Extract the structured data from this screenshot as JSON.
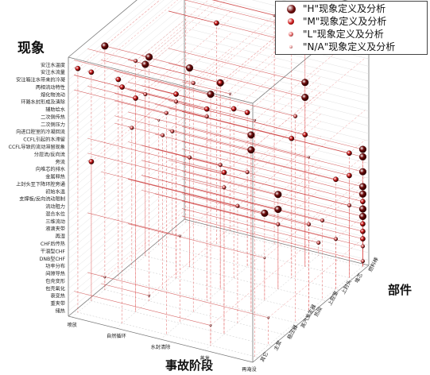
{
  "chart_data": {
    "type": "scatter",
    "projection": "3d",
    "z_axis_title": "现象",
    "x_axis_title": "事故阶段",
    "y_axis_title": "部件",
    "phenomena": [
      "安注水温度",
      "安注水流量",
      "安注箱注水带来的冷凝",
      "两相流动特性",
      "熔化物流动",
      "环路水封形成及清除",
      "辅助给水",
      "二次侧传热",
      "二次侧压力",
      "向进口腔室的冷凝回流",
      "CCFL引起的水滞留",
      "CCFL导致的流动滞留现象",
      "分层流/反向流",
      "旁流",
      "向堆芯的排水",
      "金属释热",
      "上封头至下降环腔旁通",
      "初始水温",
      "支撑板/反向流动限制",
      "流动阻力",
      "混合水位",
      "三维流动",
      "液滴夹带",
      "再湿",
      "CHF后传热",
      "干涸型CHF",
      "DNB型CHF",
      "功率分布",
      "间隙导热",
      "包壳变形",
      "包壳氧化",
      "衰变热",
      "重夹带",
      "储热"
    ],
    "stages": [
      "喷放",
      "自然循环",
      "水封清除",
      "蒸发",
      "再淹没"
    ],
    "components": [
      "其它",
      "主泵",
      "稳压器",
      "蒸汽发生器",
      "热段",
      "上腔室",
      "上封头",
      "堆芯",
      "燃料棒"
    ],
    "legend": [
      "\"H\"现象定义及分析",
      "\"M\"现象定义及分析",
      "\"L\"现象定义及分析",
      "\"N/A\"现象定义及分析"
    ],
    "series": [
      {
        "name": "\"H\"现象定义及分析",
        "color": "#6e0b0b",
        "points": [
          {
            "stage": "喷放",
            "component": "稳压器",
            "phenomenon": "安注水流量"
          },
          {
            "stage": "蒸发",
            "component": "其它",
            "phenomenon": "安注水温度"
          },
          {
            "stage": "水封清除",
            "component": "热段",
            "phenomenon": "辅助给水"
          },
          {
            "stage": "喷放",
            "component": "上腔室",
            "phenomenon": "二次侧压力"
          },
          {
            "stage": "自然循环",
            "component": "稳压器",
            "phenomenon": "安注水流量"
          },
          {
            "stage": "自然循环",
            "component": "上腔室",
            "phenomenon": "二次侧传热"
          },
          {
            "stage": "蒸发",
            "component": "蒸汽发生器",
            "phenomenon": "CCFL引起的水滞留"
          },
          {
            "stage": "蒸发",
            "component": "蒸汽发生器",
            "phenomenon": "分层流/反向流"
          },
          {
            "stage": "再淹没",
            "component": "燃料棒",
            "phenomenon": "三维流动"
          },
          {
            "stage": "再淹没",
            "component": "燃料棒",
            "phenomenon": "再湿"
          },
          {
            "stage": "再淹没",
            "component": "燃料棒",
            "phenomenon": "流动阻力"
          },
          {
            "stage": "再淹没",
            "component": "燃料棒",
            "phenomenon": "CHF后传热"
          },
          {
            "stage": "再淹没",
            "component": "燃料棒",
            "phenomenon": "支撑板/反向流动限制"
          },
          {
            "stage": "蒸发",
            "component": "上腔室",
            "phenomenon": "三维流动"
          },
          {
            "stage": "蒸发",
            "component": "上腔室",
            "phenomenon": "再湿"
          },
          {
            "stage": "蒸发",
            "component": "堆芯",
            "phenomenon": "熔化物流动"
          },
          {
            "stage": "蒸发",
            "component": "堆芯",
            "phenomenon": "CCFL导致的流动滞留现象"
          },
          {
            "stage": "再淹没",
            "component": "燃料棒",
            "phenomenon": "功率分布"
          },
          {
            "stage": "再淹没",
            "component": "燃料棒",
            "phenomenon": "DNB型CHF"
          },
          {
            "stage": "蒸发",
            "component": "热段",
            "phenomenon": "液滴夹带"
          },
          {
            "stage": "蒸发",
            "component": "堆芯",
            "phenomenon": "安注水流量"
          },
          {
            "stage": "蒸发",
            "component": "堆芯",
            "phenomenon": "向进口腔室的冷凝回流"
          }
        ]
      },
      {
        "name": "\"M\"现象定义及分析",
        "color": "#d11a1a",
        "points": [
          {
            "stage": "喷放",
            "component": "其它",
            "phenomenon": "安注水流量"
          },
          {
            "stage": "自然循环",
            "component": "其它",
            "phenomenon": "安注箱注水带来的冷凝"
          },
          {
            "stage": "喷放",
            "component": "主泵",
            "phenomenon": "两相流动特性"
          },
          {
            "stage": "自然循环",
            "component": "主泵",
            "phenomenon": "环路水封形成及清除"
          },
          {
            "stage": "喷放",
            "component": "蒸汽发生器",
            "phenomenon": "二次侧传热"
          },
          {
            "stage": "水封清除",
            "component": "上腔室",
            "phenomenon": "CCFL导致的流动滞留现象"
          },
          {
            "stage": "水封清除",
            "component": "上封头",
            "phenomenon": "旁流"
          },
          {
            "stage": "蒸发",
            "component": "上封头",
            "phenomenon": "金属释热"
          },
          {
            "stage": "蒸发",
            "component": "堆芯",
            "phenomenon": "上封头至下降环腔旁通"
          },
          {
            "stage": "再淹没",
            "component": "堆芯",
            "phenomenon": "初始水温"
          },
          {
            "stage": "再淹没",
            "component": "堆芯",
            "phenomenon": "混合水位"
          },
          {
            "stage": "再淹没",
            "component": "上封头",
            "phenomenon": "流动阻力"
          },
          {
            "stage": "再淹没",
            "component": "燃料棒",
            "phenomenon": "干涸型CHF"
          },
          {
            "stage": "再淹没",
            "component": "燃料棒",
            "phenomenon": "间隙导热"
          },
          {
            "stage": "再淹没",
            "component": "燃料棒",
            "phenomenon": "包壳变形"
          },
          {
            "stage": "再淹没",
            "component": "燃料棒",
            "phenomenon": "包壳氧化"
          },
          {
            "stage": "蒸发",
            "component": "主泵",
            "phenomenon": "分层流/反向流"
          },
          {
            "stage": "自然循环",
            "component": "热段",
            "phenomenon": "向进口腔室的冷凝回流"
          },
          {
            "stage": "水封清除",
            "component": "蒸汽发生器",
            "phenomenon": "二次侧压力"
          },
          {
            "stage": "蒸发",
            "component": "上封头",
            "phenomenon": "安注水温度"
          },
          {
            "stage": "喷放",
            "component": "主泵",
            "phenomenon": "金属释热"
          },
          {
            "stage": "水封清除",
            "component": "热段",
            "phenomenon": "辅助给水"
          },
          {
            "stage": "自然循环",
            "component": "堆芯",
            "phenomenon": "熔化物流动"
          }
        ]
      },
      {
        "name": "\"L\"现象定义及分析",
        "color": "#e86a6a",
        "points": [
          {
            "stage": "自然循环",
            "component": "主泵",
            "phenomenon": "安注水温度"
          },
          {
            "stage": "水封清除",
            "component": "其它",
            "phenomenon": "熔化物流动"
          },
          {
            "stage": "水封清除",
            "component": "稳压器",
            "phenomenon": "两相流动特性"
          },
          {
            "stage": "喷放",
            "component": "上腔室",
            "phenomenon": "分层流/反向流"
          },
          {
            "stage": "自然循环",
            "component": "蒸汽发生器",
            "phenomenon": "旁流"
          },
          {
            "stage": "蒸发",
            "component": "主泵",
            "phenomenon": "向堆芯的排水"
          },
          {
            "stage": "喷放",
            "component": "热段",
            "phenomenon": "金属释热"
          },
          {
            "stage": "水封清除",
            "component": "热段",
            "phenomenon": "初始水温"
          },
          {
            "stage": "再淹没",
            "component": "热段",
            "phenomenon": "液滴夹带"
          },
          {
            "stage": "再淹没",
            "component": "上腔室",
            "phenomenon": "再湿"
          },
          {
            "stage": "再淹没",
            "component": "堆芯",
            "phenomenon": "CHF后传热"
          },
          {
            "stage": "再淹没",
            "component": "燃料棒",
            "phenomenon": "衰变热"
          },
          {
            "stage": "再淹没",
            "component": "燃料棒",
            "phenomenon": "储热"
          },
          {
            "stage": "蒸发",
            "component": "燃料棒",
            "phenomenon": "重夹带"
          },
          {
            "stage": "水封清除",
            "component": "上封头",
            "phenomenon": "三维流动"
          },
          {
            "stage": "自然循环",
            "component": "上腔室",
            "phenomenon": "流动阻力"
          },
          {
            "stage": "蒸发",
            "component": "稳压器",
            "phenomenon": "支撑板/反向流动限制"
          },
          {
            "stage": "喷放",
            "component": "堆芯",
            "phenomenon": "混合水位"
          },
          {
            "stage": "水封清除",
            "component": "蒸汽发生器",
            "phenomenon": "向进口腔室的冷凝回流"
          },
          {
            "stage": "自然循环",
            "component": "热段",
            "phenomenon": "CCFL引起的水滞留"
          },
          {
            "stage": "再淹没",
            "component": "蒸汽发生器",
            "phenomenon": "辅助给水"
          },
          {
            "stage": "蒸发",
            "component": "上腔室",
            "phenomenon": "干涸型CHF"
          },
          {
            "stage": "再淹没",
            "component": "上封头",
            "phenomenon": "功率分布"
          }
        ]
      },
      {
        "name": "\"N/A\"现象定义及分析",
        "color": "#f2a4a4",
        "points": [
          {
            "stage": "喷放",
            "component": "燃料棒",
            "phenomenon": "安注水温度"
          },
          {
            "stage": "自然循环",
            "component": "稳压器",
            "phenomenon": "储热"
          },
          {
            "stage": "水封清除",
            "component": "燃料棒",
            "phenomenon": "两相流动特性"
          },
          {
            "stage": "蒸发",
            "component": "其它",
            "phenomenon": "衰变热"
          },
          {
            "stage": "再淹没",
            "component": "其它",
            "phenomenon": "安注箱注水带来的冷凝"
          },
          {
            "stage": "喷放",
            "component": "上封头",
            "phenomenon": "初始水温"
          },
          {
            "stage": "再淹没",
            "component": "主泵",
            "phenomenon": "包壳氧化"
          },
          {
            "stage": "自然循环",
            "component": "燃料棒",
            "phenomenon": "金属释热"
          },
          {
            "stage": "水封清除",
            "component": "主泵",
            "phenomenon": "液滴夹带"
          },
          {
            "stage": "蒸发",
            "component": "热段",
            "phenomenon": "间隙导热"
          },
          {
            "stage": "喷放",
            "component": "稳压器",
            "phenomenon": "重夹带"
          },
          {
            "stage": "再淹没",
            "component": "热段",
            "phenomenon": "旁流"
          }
        ]
      }
    ],
    "grid": true,
    "legend_position": "top-right"
  }
}
